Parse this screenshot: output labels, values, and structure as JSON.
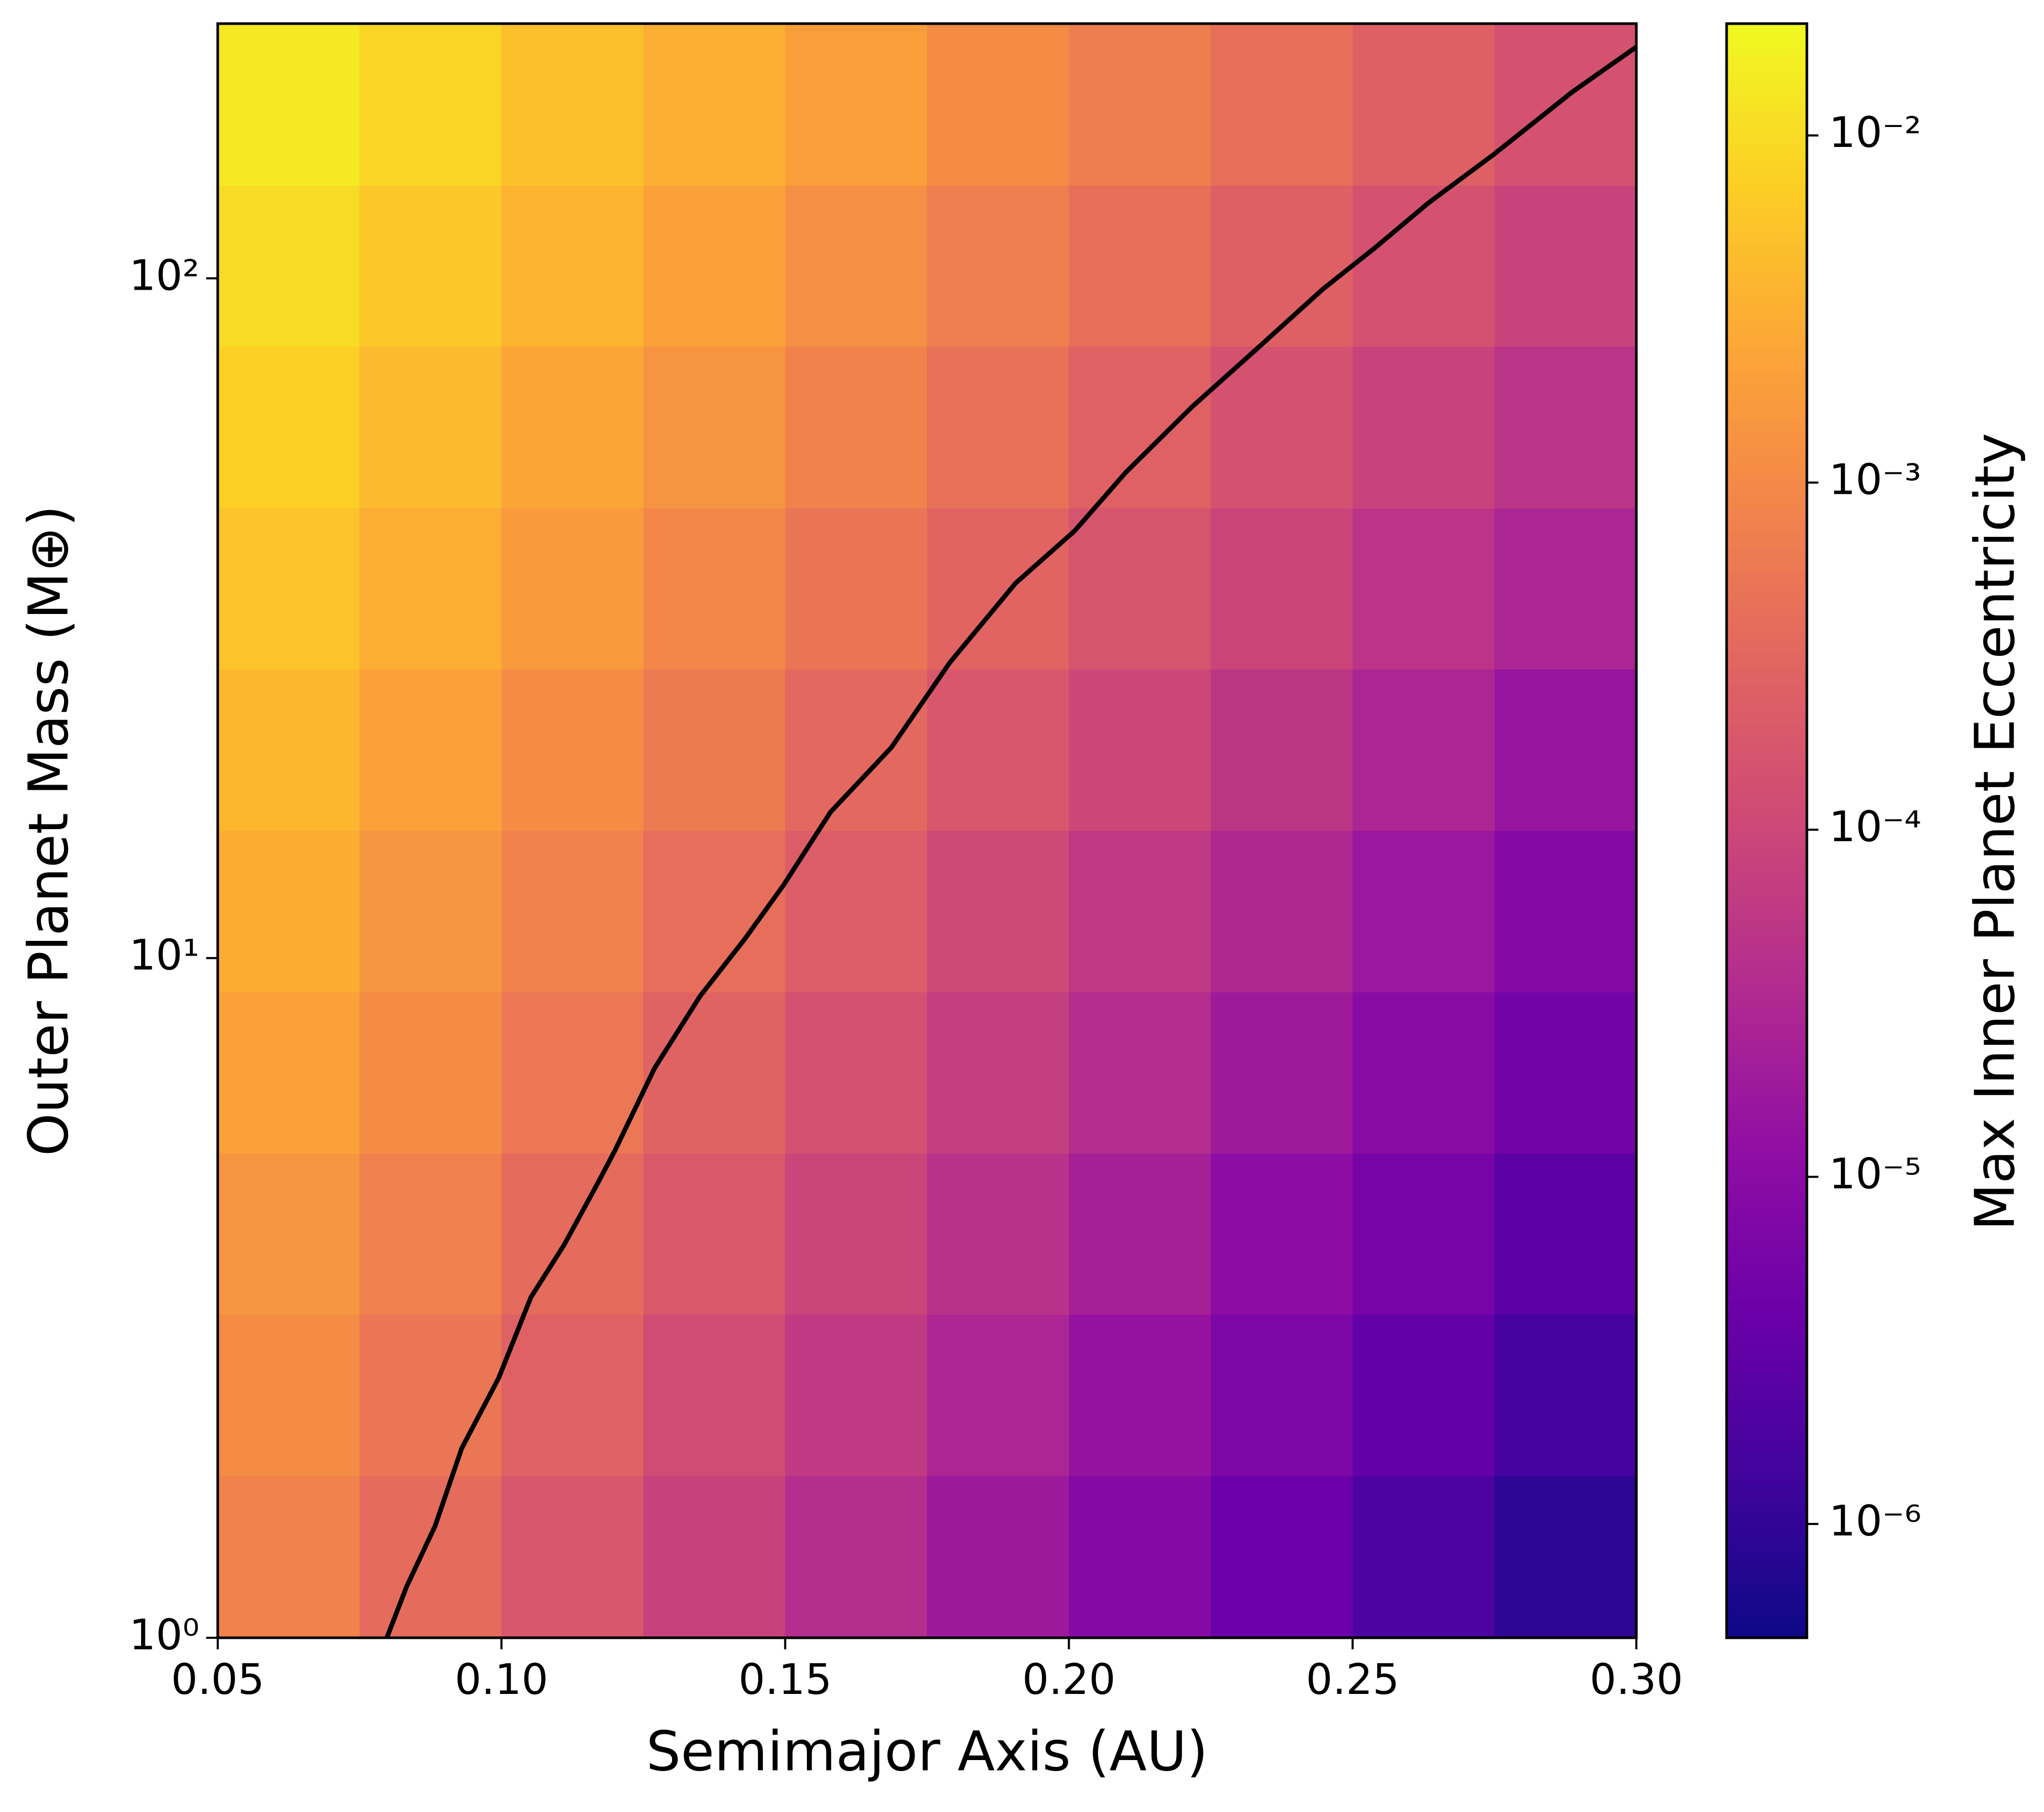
{
  "chart_data": {
    "type": "heatmap",
    "colormap": "plasma",
    "x_label": "Semimajor Axis (AU)",
    "y_label": "Outer Planet Mass (M⊕)",
    "colorbar_label": "Max Inner Planet Eccentricity",
    "y_scale": "log",
    "z_scale": "log",
    "xlim": [
      0.05,
      0.3
    ],
    "ylim": [
      1,
      237
    ],
    "zlim": [
      4.7e-07,
      0.021
    ],
    "xticks": [
      0.05,
      {
        "value": 0.1,
        "label": "0.10"
      },
      0.15,
      {
        "value": 0.2,
        "label": "0.20"
      },
      0.25,
      {
        "value": 0.3,
        "label": "0.30"
      }
    ],
    "yticks": [
      {
        "value": 1,
        "label": "10⁰"
      },
      {
        "value": 10,
        "label": "10¹"
      },
      {
        "value": 100,
        "label": "10²"
      }
    ],
    "zticks": [
      {
        "value": 1e-06,
        "label": "10⁻⁶"
      },
      {
        "value": 1e-05,
        "label": "10⁻⁵"
      },
      {
        "value": 0.0001,
        "label": "10⁻⁴"
      },
      {
        "value": 0.001,
        "label": "10⁻³"
      },
      {
        "value": 0.01,
        "label": "10⁻²"
      }
    ],
    "x_bins": [
      0.05,
      0.075,
      0.1,
      0.125,
      0.15,
      0.175,
      0.2,
      0.225,
      0.25,
      0.275,
      0.3
    ],
    "y_bins": [
      1,
      1.73,
      2.99,
      5.16,
      8.91,
      15.4,
      26.6,
      45.9,
      79.4,
      137,
      237
    ],
    "z": [
      [
        0.0008,
        0.00038,
        0.00018,
        8.3e-05,
        3.9e-05,
        1.8e-05,
        8.7e-06,
        4.1e-06,
        1.9e-06,
        9.1e-07
      ],
      [
        0.0011,
        0.00053,
        0.00026,
        0.00012,
        6e-05,
        2.9e-05,
        1.4e-05,
        6.9e-06,
        3.3e-06,
        1.6e-06
      ],
      [
        0.0015,
        0.00075,
        0.00037,
        0.00019,
        9.3e-05,
        4.6e-05,
        2.3e-05,
        1.1e-05,
        5.7e-06,
        2.8e-06
      ],
      [
        0.0021,
        0.0011,
        0.00054,
        0.00028,
        0.00014,
        7.3e-05,
        3.7e-05,
        1.9e-05,
        9.7e-06,
        5e-06
      ],
      [
        0.0029,
        0.0015,
        0.00079,
        0.00041,
        0.00022,
        0.00011,
        6e-05,
        3.2e-05,
        1.7e-05,
        8.8e-06
      ],
      [
        0.0039,
        0.0021,
        0.0011,
        0.00062,
        0.00033,
        0.00018,
        9.8e-05,
        5.3e-05,
        2.9e-05,
        1.5e-05
      ],
      [
        0.0054,
        0.003,
        0.0017,
        0.00093,
        0.00052,
        0.00029,
        0.00016,
        9e-05,
        5e-05,
        2.8e-05
      ],
      [
        0.0074,
        0.0042,
        0.0024,
        0.0014,
        0.0008,
        0.00046,
        0.00026,
        0.00015,
        8.6e-05,
        4.9e-05
      ],
      [
        0.01,
        0.006,
        0.0035,
        0.0021,
        0.0012,
        0.00072,
        0.00042,
        0.00025,
        0.00015,
        8.6e-05
      ],
      [
        0.014,
        0.0085,
        0.0051,
        0.0031,
        0.0019,
        0.0011,
        0.00069,
        0.00042,
        0.00025,
        0.00015
      ]
    ],
    "contour": {
      "color": "#000000",
      "x": [
        0.0798,
        0.0833,
        0.0883,
        0.093,
        0.0995,
        0.1052,
        0.111,
        0.1167,
        0.12,
        0.127,
        0.135,
        0.143,
        0.1497,
        0.158,
        0.1687,
        0.179,
        0.1906,
        0.201,
        0.21,
        0.2217,
        0.2333,
        0.2448,
        0.254,
        0.2633,
        0.2748,
        0.2887,
        0.3
      ],
      "y": [
        1,
        1.19,
        1.46,
        1.9,
        2.41,
        3.17,
        3.78,
        4.62,
        5.21,
        6.89,
        8.79,
        10.7,
        12.8,
        16.4,
        20.4,
        27.2,
        35.6,
        42.5,
        51.8,
        64.7,
        79,
        96.5,
        111,
        129,
        152,
        188,
        219
      ]
    }
  }
}
